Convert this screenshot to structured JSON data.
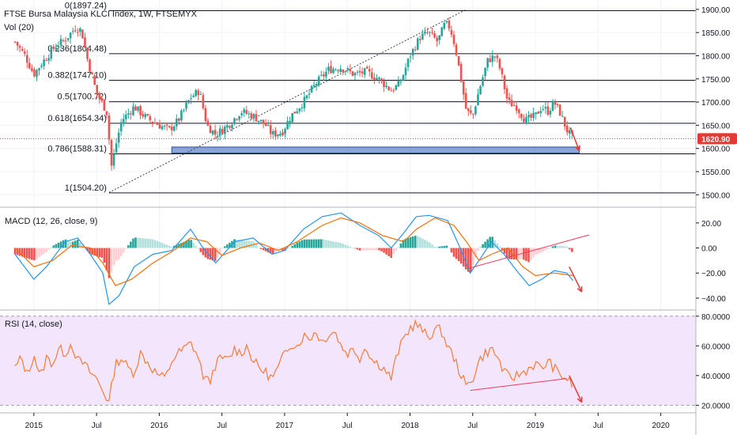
{
  "header": {
    "title": "FTSE Bursa Malaysia KLCI Index, 1W, FTSEMYX",
    "volume": "Vol (20)"
  },
  "colors": {
    "up": "#26a69a",
    "down": "#ef5350",
    "macd_line": "#2196f3",
    "signal_line": "#ff6d00",
    "rsi_line": "#f57c3a",
    "rsi_band": "#f3e5fb",
    "zone": "#4f74c4",
    "arrow": "#e53935"
  },
  "chart_data": [
    {
      "type": "candlestick",
      "panel": "price",
      "ylim": [
        1480,
        1910
      ],
      "yticks": [
        1500,
        1550,
        1600,
        1650,
        1700,
        1750,
        1800,
        1850,
        1900
      ],
      "ytick_labels": [
        "1500.00",
        "1550.00",
        "1600.00",
        "1650.00",
        "1700.00",
        "1750.00",
        "1800.00",
        "1850.00",
        "1900.00"
      ],
      "xticks": [
        {
          "label": "2015",
          "t": 2015.0
        },
        {
          "label": "Jul",
          "t": 2015.5
        },
        {
          "label": "2016",
          "t": 2016.0
        },
        {
          "label": "Jul",
          "t": 2016.5
        },
        {
          "label": "2017",
          "t": 2017.0
        },
        {
          "label": "Jul",
          "t": 2017.5
        },
        {
          "label": "2018",
          "t": 2018.0
        },
        {
          "label": "Jul",
          "t": 2018.5
        },
        {
          "label": "2019",
          "t": 2019.0
        },
        {
          "label": "Jul",
          "t": 2019.5
        },
        {
          "label": "2020",
          "t": 2020.0
        }
      ],
      "last_price": 1620.9,
      "last_price_label": "1620.90",
      "fib_levels": [
        {
          "label": "0(1897.24)",
          "value": 1897.24
        },
        {
          "label": "0.236(1804.48)",
          "value": 1804.48
        },
        {
          "label": "0.382(1747.10)",
          "value": 1747.1
        },
        {
          "label": "0.5(1700.72)",
          "value": 1700.72
        },
        {
          "label": "0.618(1654.34)",
          "value": 1654.34
        },
        {
          "label": "0.786(1588.31)",
          "value": 1588.31
        },
        {
          "label": "1(1504.20)",
          "value": 1504.2
        }
      ],
      "support_zone": {
        "t_start": 2016.1,
        "t_end": 2019.35,
        "low": 1590,
        "high": 1603
      },
      "trendline": {
        "t1": 2015.6,
        "v1": 1505,
        "t2": 2018.45,
        "v2": 1900
      },
      "arrow": {
        "t1": 2019.28,
        "v1": 1645,
        "t2": 2019.35,
        "v2": 1595
      },
      "price_path": [
        [
          2014.85,
          1830
        ],
        [
          2014.93,
          1800
        ],
        [
          2015.0,
          1760
        ],
        [
          2015.08,
          1790
        ],
        [
          2015.17,
          1820
        ],
        [
          2015.25,
          1835
        ],
        [
          2015.33,
          1860
        ],
        [
          2015.38,
          1855
        ],
        [
          2015.42,
          1800
        ],
        [
          2015.5,
          1720
        ],
        [
          2015.58,
          1680
        ],
        [
          2015.62,
          1560
        ],
        [
          2015.66,
          1615
        ],
        [
          2015.7,
          1660
        ],
        [
          2015.8,
          1690
        ],
        [
          2015.9,
          1665
        ],
        [
          2016.0,
          1650
        ],
        [
          2016.08,
          1640
        ],
        [
          2016.15,
          1660
        ],
        [
          2016.25,
          1710
        ],
        [
          2016.32,
          1725
        ],
        [
          2016.38,
          1650
        ],
        [
          2016.45,
          1630
        ],
        [
          2016.55,
          1650
        ],
        [
          2016.65,
          1680
        ],
        [
          2016.75,
          1670
        ],
        [
          2016.85,
          1650
        ],
        [
          2016.9,
          1630
        ],
        [
          2016.98,
          1635
        ],
        [
          2017.05,
          1670
        ],
        [
          2017.15,
          1700
        ],
        [
          2017.25,
          1740
        ],
        [
          2017.35,
          1770
        ],
        [
          2017.45,
          1775
        ],
        [
          2017.55,
          1760
        ],
        [
          2017.65,
          1765
        ],
        [
          2017.75,
          1750
        ],
        [
          2017.85,
          1725
        ],
        [
          2017.92,
          1740
        ],
        [
          2018.0,
          1800
        ],
        [
          2018.08,
          1840
        ],
        [
          2018.15,
          1850
        ],
        [
          2018.22,
          1830
        ],
        [
          2018.28,
          1870
        ],
        [
          2018.32,
          1860
        ],
        [
          2018.36,
          1820
        ],
        [
          2018.4,
          1760
        ],
        [
          2018.45,
          1680
        ],
        [
          2018.5,
          1670
        ],
        [
          2018.55,
          1725
        ],
        [
          2018.62,
          1790
        ],
        [
          2018.68,
          1800
        ],
        [
          2018.72,
          1770
        ],
        [
          2018.78,
          1700
        ],
        [
          2018.85,
          1690
        ],
        [
          2018.92,
          1660
        ],
        [
          2019.0,
          1670
        ],
        [
          2019.05,
          1690
        ],
        [
          2019.1,
          1680
        ],
        [
          2019.15,
          1700
        ],
        [
          2019.2,
          1675
        ],
        [
          2019.25,
          1640
        ],
        [
          2019.3,
          1620.9
        ]
      ]
    },
    {
      "type": "histogram+line",
      "panel": "macd",
      "title": "MACD (12, 26, close, 9)",
      "ylim": [
        -47,
        30
      ],
      "yticks": [
        20,
        0,
        -20,
        -40
      ],
      "ytick_labels": [
        "20.00",
        "0.00",
        "−20.00",
        "−40.00"
      ],
      "series": [
        {
          "name": "MACD",
          "values": [
            [
              2014.85,
              -5
            ],
            [
              2015.0,
              -25
            ],
            [
              2015.1,
              -15
            ],
            [
              2015.25,
              5
            ],
            [
              2015.35,
              8
            ],
            [
              2015.45,
              -5
            ],
            [
              2015.55,
              -20
            ],
            [
              2015.6,
              -45
            ],
            [
              2015.68,
              -38
            ],
            [
              2015.8,
              -15
            ],
            [
              2015.95,
              -5
            ],
            [
              2016.1,
              -2
            ],
            [
              2016.25,
              15
            ],
            [
              2016.35,
              0
            ],
            [
              2016.45,
              -12
            ],
            [
              2016.6,
              5
            ],
            [
              2016.75,
              8
            ],
            [
              2016.9,
              -5
            ],
            [
              2017.0,
              -2
            ],
            [
              2017.15,
              15
            ],
            [
              2017.3,
              25
            ],
            [
              2017.45,
              28
            ],
            [
              2017.6,
              18
            ],
            [
              2017.75,
              10
            ],
            [
              2017.85,
              0
            ],
            [
              2017.95,
              12
            ],
            [
              2018.05,
              25
            ],
            [
              2018.15,
              26
            ],
            [
              2018.3,
              22
            ],
            [
              2018.4,
              0
            ],
            [
              2018.48,
              -20
            ],
            [
              2018.55,
              -10
            ],
            [
              2018.65,
              5
            ],
            [
              2018.75,
              -5
            ],
            [
              2018.85,
              -18
            ],
            [
              2018.95,
              -30
            ],
            [
              2019.05,
              -25
            ],
            [
              2019.15,
              -18
            ],
            [
              2019.25,
              -20
            ],
            [
              2019.3,
              -26
            ]
          ]
        },
        {
          "name": "Signal",
          "values": [
            [
              2014.85,
              0
            ],
            [
              2015.0,
              -15
            ],
            [
              2015.15,
              -10
            ],
            [
              2015.3,
              2
            ],
            [
              2015.45,
              0
            ],
            [
              2015.55,
              -12
            ],
            [
              2015.65,
              -30
            ],
            [
              2015.78,
              -25
            ],
            [
              2015.95,
              -12
            ],
            [
              2016.1,
              -3
            ],
            [
              2016.25,
              8
            ],
            [
              2016.38,
              5
            ],
            [
              2016.5,
              -6
            ],
            [
              2016.65,
              0
            ],
            [
              2016.8,
              4
            ],
            [
              2016.95,
              -2
            ],
            [
              2017.1,
              5
            ],
            [
              2017.3,
              18
            ],
            [
              2017.45,
              24
            ],
            [
              2017.6,
              20
            ],
            [
              2017.78,
              10
            ],
            [
              2017.95,
              5
            ],
            [
              2018.05,
              15
            ],
            [
              2018.2,
              24
            ],
            [
              2018.35,
              18
            ],
            [
              2018.45,
              5
            ],
            [
              2018.55,
              -10
            ],
            [
              2018.65,
              -5
            ],
            [
              2018.78,
              0
            ],
            [
              2018.9,
              -15
            ],
            [
              2019.0,
              -22
            ],
            [
              2019.15,
              -20
            ],
            [
              2019.3,
              -22
            ]
          ]
        }
      ],
      "histogram_sample": [
        -5,
        -10,
        -6,
        3,
        4,
        -2,
        -8,
        -12,
        -6,
        5,
        7,
        3,
        -3,
        -2,
        2,
        4,
        -6,
        -7,
        3,
        5,
        7,
        2,
        -3,
        -6,
        2,
        3,
        -3,
        5,
        4,
        -4,
        -10,
        -8,
        4,
        3,
        -3,
        -5,
        -3,
        2,
        3,
        -2
      ]
    },
    {
      "type": "line",
      "panel": "rsi",
      "title": "RSI (14, close)",
      "ylim": [
        17,
        82
      ],
      "yticks": [
        80,
        60,
        40,
        20
      ],
      "ytick_labels": [
        "80.0000",
        "60.0000",
        "40.0000",
        "20.0000"
      ],
      "band": [
        20,
        80
      ],
      "values": [
        [
          2014.85,
          45
        ],
        [
          2014.9,
          52
        ],
        [
          2014.95,
          40
        ],
        [
          2015.0,
          55
        ],
        [
          2015.05,
          38
        ],
        [
          2015.1,
          52
        ],
        [
          2015.15,
          48
        ],
        [
          2015.2,
          58
        ],
        [
          2015.25,
          55
        ],
        [
          2015.3,
          62
        ],
        [
          2015.35,
          50
        ],
        [
          2015.4,
          48
        ],
        [
          2015.45,
          42
        ],
        [
          2015.5,
          38
        ],
        [
          2015.55,
          30
        ],
        [
          2015.6,
          22
        ],
        [
          2015.65,
          48
        ],
        [
          2015.7,
          52
        ],
        [
          2015.75,
          45
        ],
        [
          2015.8,
          42
        ],
        [
          2015.85,
          55
        ],
        [
          2015.9,
          50
        ],
        [
          2015.95,
          44
        ],
        [
          2016.0,
          40
        ],
        [
          2016.05,
          38
        ],
        [
          2016.1,
          50
        ],
        [
          2016.15,
          55
        ],
        [
          2016.2,
          58
        ],
        [
          2016.25,
          62
        ],
        [
          2016.3,
          55
        ],
        [
          2016.35,
          40
        ],
        [
          2016.4,
          35
        ],
        [
          2016.45,
          48
        ],
        [
          2016.5,
          52
        ],
        [
          2016.55,
          50
        ],
        [
          2016.6,
          58
        ],
        [
          2016.65,
          55
        ],
        [
          2016.7,
          60
        ],
        [
          2016.75,
          50
        ],
        [
          2016.8,
          45
        ],
        [
          2016.85,
          42
        ],
        [
          2016.9,
          38
        ],
        [
          2016.95,
          45
        ],
        [
          2017.0,
          55
        ],
        [
          2017.05,
          62
        ],
        [
          2017.1,
          60
        ],
        [
          2017.15,
          67
        ],
        [
          2017.2,
          65
        ],
        [
          2017.25,
          70
        ],
        [
          2017.3,
          62
        ],
        [
          2017.35,
          68
        ],
        [
          2017.4,
          70
        ],
        [
          2017.45,
          60
        ],
        [
          2017.5,
          55
        ],
        [
          2017.55,
          58
        ],
        [
          2017.6,
          52
        ],
        [
          2017.65,
          60
        ],
        [
          2017.7,
          50
        ],
        [
          2017.75,
          48
        ],
        [
          2017.8,
          44
        ],
        [
          2017.85,
          38
        ],
        [
          2017.9,
          55
        ],
        [
          2017.95,
          65
        ],
        [
          2018.0,
          72
        ],
        [
          2018.05,
          75
        ],
        [
          2018.1,
          70
        ],
        [
          2018.15,
          65
        ],
        [
          2018.2,
          72
        ],
        [
          2018.25,
          70
        ],
        [
          2018.3,
          60
        ],
        [
          2018.35,
          52
        ],
        [
          2018.4,
          42
        ],
        [
          2018.45,
          32
        ],
        [
          2018.5,
          38
        ],
        [
          2018.55,
          50
        ],
        [
          2018.6,
          55
        ],
        [
          2018.65,
          58
        ],
        [
          2018.7,
          52
        ],
        [
          2018.75,
          42
        ],
        [
          2018.8,
          38
        ],
        [
          2018.85,
          40
        ],
        [
          2018.9,
          42
        ],
        [
          2018.95,
          45
        ],
        [
          2019.0,
          48
        ],
        [
          2019.05,
          44
        ],
        [
          2019.1,
          50
        ],
        [
          2019.15,
          45
        ],
        [
          2019.2,
          40
        ],
        [
          2019.25,
          38
        ],
        [
          2019.3,
          33
        ]
      ],
      "divergence_line": {
        "t1": 2018.48,
        "v1": 30,
        "t2": 2019.25,
        "v2": 38
      },
      "arrow": {
        "t1": 2019.27,
        "v1": 40,
        "t2": 2019.37,
        "v2": 22
      }
    }
  ]
}
